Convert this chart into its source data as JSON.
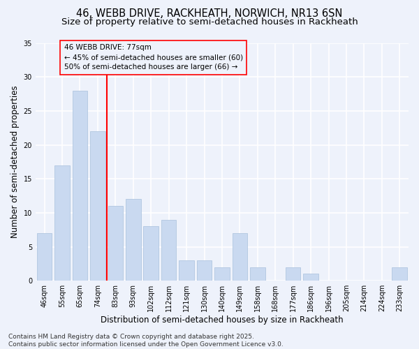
{
  "title_line1": "46, WEBB DRIVE, RACKHEATH, NORWICH, NR13 6SN",
  "title_line2": "Size of property relative to semi-detached houses in Rackheath",
  "xlabel": "Distribution of semi-detached houses by size in Rackheath",
  "ylabel": "Number of semi-detached properties",
  "categories": [
    "46sqm",
    "55sqm",
    "65sqm",
    "74sqm",
    "83sqm",
    "93sqm",
    "102sqm",
    "112sqm",
    "121sqm",
    "130sqm",
    "140sqm",
    "149sqm",
    "158sqm",
    "168sqm",
    "177sqm",
    "186sqm",
    "196sqm",
    "205sqm",
    "214sqm",
    "224sqm",
    "233sqm"
  ],
  "values": [
    7,
    17,
    28,
    22,
    11,
    12,
    8,
    9,
    3,
    3,
    2,
    7,
    2,
    0,
    2,
    1,
    0,
    0,
    0,
    0,
    2
  ],
  "bar_color": "#c9d9f0",
  "bar_edge_color": "#a8c0dc",
  "redline_x": 3.5,
  "annotation_title": "46 WEBB DRIVE: 77sqm",
  "annotation_line1": "← 45% of semi-detached houses are smaller (60)",
  "annotation_line2": "50% of semi-detached houses are larger (66) →",
  "ylim": [
    0,
    35
  ],
  "yticks": [
    0,
    5,
    10,
    15,
    20,
    25,
    30,
    35
  ],
  "footer": "Contains HM Land Registry data © Crown copyright and database right 2025.\nContains public sector information licensed under the Open Government Licence v3.0.",
  "background_color": "#eef2fb",
  "grid_color": "#ffffff",
  "title_fontsize": 10.5,
  "subtitle_fontsize": 9.5,
  "axis_label_fontsize": 8.5,
  "tick_fontsize": 7,
  "annotation_fontsize": 7.5,
  "footer_fontsize": 6.5
}
